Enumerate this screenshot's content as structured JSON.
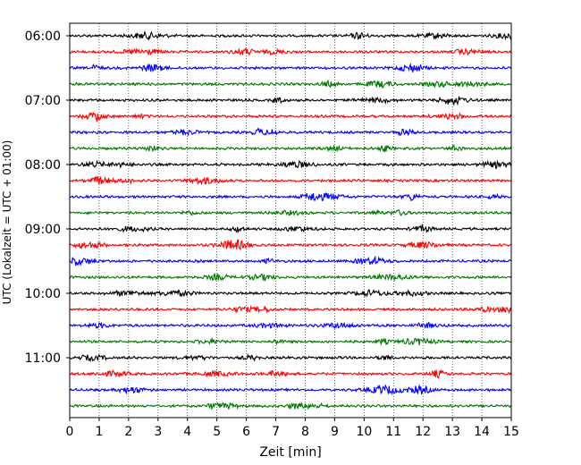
{
  "chart_data": {
    "type": "line",
    "title": "",
    "xlabel": "Zeit  [min]",
    "ylabel": "UTC (Lokalzeit = UTC + 01:00)",
    "xlim": [
      0,
      15
    ],
    "x_ticks": [
      0,
      1,
      2,
      3,
      4,
      5,
      6,
      7,
      8,
      9,
      10,
      11,
      12,
      13,
      14,
      15
    ],
    "x_tick_labels": [
      "0",
      "1",
      "2",
      "3",
      "4",
      "5",
      "6",
      "7",
      "8",
      "9",
      "10",
      "11",
      "12",
      "13",
      "14",
      "15"
    ],
    "y_tick_labels": [
      "06:00",
      "07:00",
      "08:00",
      "09:00",
      "10:00",
      "11:00"
    ],
    "grid": "x-dotted",
    "trace_interval_min": 15,
    "trace_colors": [
      "#000000",
      "#ff0000",
      "#0000ff",
      "#007700"
    ],
    "traces": [
      {
        "start": "06:00"
      },
      {
        "start": "06:15"
      },
      {
        "start": "06:30"
      },
      {
        "start": "06:45"
      },
      {
        "start": "07:00"
      },
      {
        "start": "07:15"
      },
      {
        "start": "07:30"
      },
      {
        "start": "07:45"
      },
      {
        "start": "08:00"
      },
      {
        "start": "08:15"
      },
      {
        "start": "08:30"
      },
      {
        "start": "08:45"
      },
      {
        "start": "09:00"
      },
      {
        "start": "09:15"
      },
      {
        "start": "09:30"
      },
      {
        "start": "09:45"
      },
      {
        "start": "10:00"
      },
      {
        "start": "10:15"
      },
      {
        "start": "10:30"
      },
      {
        "start": "10:45"
      },
      {
        "start": "11:00"
      },
      {
        "start": "11:15"
      },
      {
        "start": "11:30"
      },
      {
        "start": "11:45"
      }
    ]
  }
}
